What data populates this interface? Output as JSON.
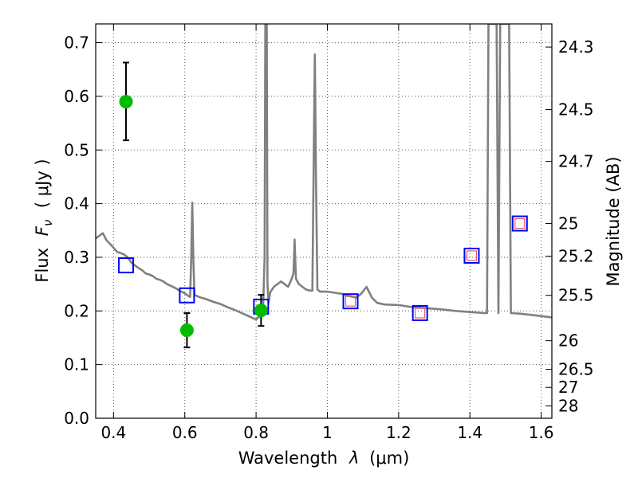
{
  "chart_data": {
    "type": "scatter",
    "xlabel_prefix": "Wavelength",
    "xlabel_lambda": "λ",
    "xlabel_unit": "(μm)",
    "ylabel_prefix": "Flux",
    "ylabel_F": "F",
    "ylabel_sub": "ν",
    "ylabel_unit": "( μJy )",
    "y2label": "Magnitude (AB)",
    "xlim": [
      0.35,
      1.63
    ],
    "ylim": [
      0.0,
      0.735
    ],
    "grid": true,
    "x_ticks": [
      {
        "v": 0.4,
        "label": "0.4"
      },
      {
        "v": 0.6,
        "label": "0.6"
      },
      {
        "v": 0.8,
        "label": "0.8"
      },
      {
        "v": 1.0,
        "label": "1"
      },
      {
        "v": 1.2,
        "label": "1.2"
      },
      {
        "v": 1.4,
        "label": "1.4"
      },
      {
        "v": 1.6,
        "label": "1.6"
      }
    ],
    "y_ticks": [
      {
        "v": 0.0,
        "label": "0.0"
      },
      {
        "v": 0.1,
        "label": "0.1"
      },
      {
        "v": 0.2,
        "label": "0.2"
      },
      {
        "v": 0.3,
        "label": "0.3"
      },
      {
        "v": 0.4,
        "label": "0.4"
      },
      {
        "v": 0.5,
        "label": "0.5"
      },
      {
        "v": 0.6,
        "label": "0.6"
      },
      {
        "v": 0.7,
        "label": "0.7"
      }
    ],
    "mag_ticks": [
      {
        "label": "24.3",
        "mag": 24.3
      },
      {
        "label": "24.5",
        "mag": 24.5
      },
      {
        "label": "24.7",
        "mag": 24.7
      },
      {
        "label": "25",
        "mag": 25.0
      },
      {
        "label": "25.2",
        "mag": 25.2
      },
      {
        "label": "25.5",
        "mag": 25.5
      },
      {
        "label": "26",
        "mag": 26.0
      },
      {
        "label": "26.5",
        "mag": 26.5
      },
      {
        "label": "27",
        "mag": 27.0
      },
      {
        "label": "28",
        "mag": 28.0
      }
    ],
    "colors": {
      "spectrum": "#808080",
      "observed": "#00bb00",
      "model_box": "#0000ff",
      "model_inner": "#e06060",
      "errorbar": "#000000",
      "grid": "#555555"
    },
    "observed_points": [
      {
        "x": 0.435,
        "y": 0.59,
        "yerr_low": 0.518,
        "yerr_high": 0.663
      },
      {
        "x": 0.606,
        "y": 0.164,
        "yerr_low": 0.132,
        "yerr_high": 0.196
      },
      {
        "x": 0.814,
        "y": 0.201,
        "yerr_low": 0.172,
        "yerr_high": 0.23
      }
    ],
    "model_points": [
      {
        "x": 0.435,
        "y": 0.285,
        "inner": false
      },
      {
        "x": 0.606,
        "y": 0.229,
        "inner": false
      },
      {
        "x": 0.814,
        "y": 0.208,
        "inner": false
      },
      {
        "x": 1.065,
        "y": 0.218,
        "inner": true
      },
      {
        "x": 1.26,
        "y": 0.196,
        "inner": true
      },
      {
        "x": 1.405,
        "y": 0.303,
        "inner": true
      },
      {
        "x": 1.54,
        "y": 0.363,
        "inner": true
      }
    ],
    "spectrum": [
      [
        0.35,
        0.335
      ],
      [
        0.36,
        0.34
      ],
      [
        0.37,
        0.345
      ],
      [
        0.38,
        0.332
      ],
      [
        0.39,
        0.325
      ],
      [
        0.4,
        0.318
      ],
      [
        0.41,
        0.31
      ],
      [
        0.42,
        0.308
      ],
      [
        0.43,
        0.305
      ],
      [
        0.44,
        0.3
      ],
      [
        0.45,
        0.29
      ],
      [
        0.46,
        0.285
      ],
      [
        0.47,
        0.28
      ],
      [
        0.48,
        0.276
      ],
      [
        0.49,
        0.27
      ],
      [
        0.5,
        0.268
      ],
      [
        0.51,
        0.265
      ],
      [
        0.52,
        0.26
      ],
      [
        0.53,
        0.258
      ],
      [
        0.54,
        0.255
      ],
      [
        0.55,
        0.25
      ],
      [
        0.56,
        0.247
      ],
      [
        0.57,
        0.244
      ],
      [
        0.58,
        0.24
      ],
      [
        0.59,
        0.236
      ],
      [
        0.6,
        0.233
      ],
      [
        0.61,
        0.228
      ],
      [
        0.615,
        0.226
      ],
      [
        0.618,
        0.3
      ],
      [
        0.621,
        0.402
      ],
      [
        0.624,
        0.3
      ],
      [
        0.627,
        0.23
      ],
      [
        0.64,
        0.226
      ],
      [
        0.66,
        0.222
      ],
      [
        0.68,
        0.217
      ],
      [
        0.7,
        0.213
      ],
      [
        0.72,
        0.207
      ],
      [
        0.74,
        0.202
      ],
      [
        0.76,
        0.196
      ],
      [
        0.78,
        0.19
      ],
      [
        0.8,
        0.184
      ],
      [
        0.81,
        0.19
      ],
      [
        0.815,
        0.205
      ],
      [
        0.82,
        0.21
      ],
      [
        0.824,
        0.3
      ],
      [
        0.826,
        0.735
      ],
      [
        0.83,
        0.735
      ],
      [
        0.832,
        0.25
      ],
      [
        0.835,
        0.215
      ],
      [
        0.84,
        0.235
      ],
      [
        0.85,
        0.245
      ],
      [
        0.86,
        0.25
      ],
      [
        0.87,
        0.255
      ],
      [
        0.88,
        0.25
      ],
      [
        0.89,
        0.245
      ],
      [
        0.9,
        0.26
      ],
      [
        0.905,
        0.27
      ],
      [
        0.908,
        0.333
      ],
      [
        0.912,
        0.26
      ],
      [
        0.92,
        0.25
      ],
      [
        0.93,
        0.245
      ],
      [
        0.94,
        0.24
      ],
      [
        0.95,
        0.238
      ],
      [
        0.958,
        0.238
      ],
      [
        0.962,
        0.5
      ],
      [
        0.965,
        0.678
      ],
      [
        0.968,
        0.45
      ],
      [
        0.972,
        0.24
      ],
      [
        0.98,
        0.236
      ],
      [
        1.0,
        0.236
      ],
      [
        1.02,
        0.234
      ],
      [
        1.04,
        0.232
      ],
      [
        1.06,
        0.228
      ],
      [
        1.08,
        0.225
      ],
      [
        1.095,
        0.232
      ],
      [
        1.11,
        0.245
      ],
      [
        1.125,
        0.225
      ],
      [
        1.14,
        0.215
      ],
      [
        1.16,
        0.212
      ],
      [
        1.2,
        0.211
      ],
      [
        1.24,
        0.207
      ],
      [
        1.28,
        0.205
      ],
      [
        1.32,
        0.203
      ],
      [
        1.36,
        0.2
      ],
      [
        1.4,
        0.198
      ],
      [
        1.44,
        0.196
      ],
      [
        1.448,
        0.196
      ],
      [
        1.452,
        0.735
      ],
      [
        1.475,
        0.735
      ],
      [
        1.48,
        0.196
      ],
      [
        1.485,
        0.735
      ],
      [
        1.51,
        0.735
      ],
      [
        1.515,
        0.196
      ],
      [
        1.54,
        0.195
      ],
      [
        1.58,
        0.192
      ],
      [
        1.63,
        0.188
      ]
    ]
  }
}
